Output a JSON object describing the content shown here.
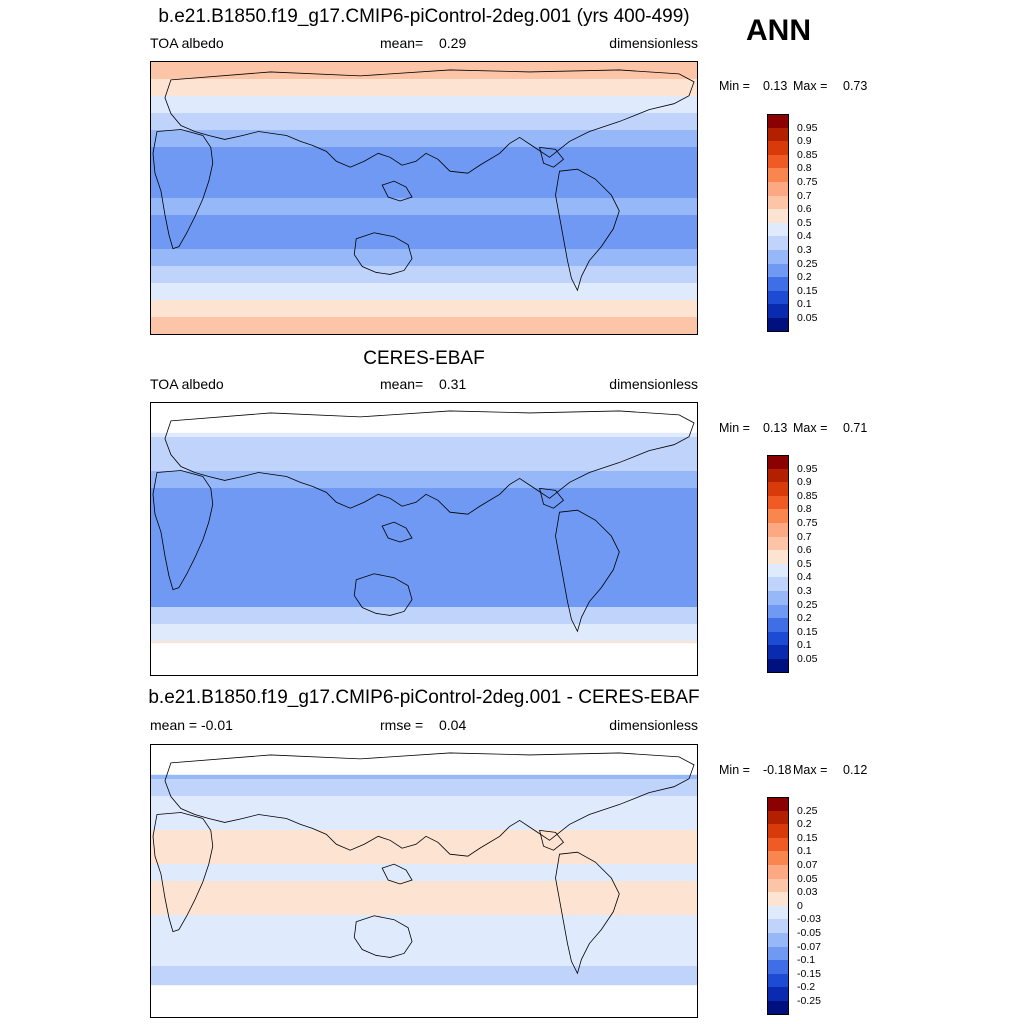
{
  "season": "ANN",
  "panels": [
    {
      "title": "b.e21.B1850.f19_g17.CMIP6-piControl-2deg.001 (yrs 400-499)",
      "left_text": "TOA albedo",
      "mid_label": "mean=",
      "mid_value": "0.29",
      "units": "dimensionless",
      "min_label": "Min =",
      "min_value": "0.13",
      "max_label": "Max =",
      "max_value": "0.73",
      "colorbar": {
        "labels": [
          "0.95",
          "0.9",
          "0.85",
          "0.8",
          "0.75",
          "0.7",
          "0.6",
          "0.5",
          "0.4",
          "0.3",
          "0.25",
          "0.2",
          "0.15",
          "0.1",
          "0.05"
        ],
        "colors": [
          "#8b0000",
          "#b22000",
          "#d93a0a",
          "#f05a24",
          "#f8864e",
          "#fba883",
          "#fcc5a7",
          "#fde3d2",
          "#dfeafd",
          "#bfd3fb",
          "#96b7f8",
          "#6f99f2",
          "#3f6ee6",
          "#1d4bd3",
          "#0a2ab0",
          "#00107e"
        ]
      },
      "field": {
        "bands": [
          0.66,
          0.55,
          0.42,
          0.34,
          0.28,
          0.24,
          0.21,
          0.22,
          0.25,
          0.23,
          0.2,
          0.25,
          0.33,
          0.43,
          0.55,
          0.66
        ],
        "missing_north": false,
        "missing_south": false
      }
    },
    {
      "title": "CERES-EBAF",
      "left_text": "TOA albedo",
      "mid_label": "mean=",
      "mid_value": "0.31",
      "units": "dimensionless",
      "min_label": "Min =",
      "min_value": "0.13",
      "max_label": "Max =",
      "max_value": "0.71",
      "colorbar": {
        "labels": [
          "0.95",
          "0.9",
          "0.85",
          "0.8",
          "0.75",
          "0.7",
          "0.6",
          "0.5",
          "0.4",
          "0.3",
          "0.25",
          "0.2",
          "0.15",
          "0.1",
          "0.05"
        ],
        "colors": [
          "#8b0000",
          "#b22000",
          "#d93a0a",
          "#f05a24",
          "#f8864e",
          "#fba883",
          "#fcc5a7",
          "#fde3d2",
          "#dfeafd",
          "#bfd3fb",
          "#96b7f8",
          "#6f99f2",
          "#3f6ee6",
          "#1d4bd3",
          "#0a2ab0",
          "#00107e"
        ]
      },
      "field": {
        "bands": [
          0.5,
          0.46,
          0.38,
          0.32,
          0.27,
          0.23,
          0.2,
          0.21,
          0.24,
          0.22,
          0.2,
          0.24,
          0.31,
          0.4,
          0.52,
          0.5
        ],
        "missing_north": true,
        "missing_south": true
      }
    },
    {
      "title": "b.e21.B1850.f19_g17.CMIP6-piControl-2deg.001 - CERES-EBAF",
      "left_text": "mean =  -0.01",
      "mid_label": "rmse =",
      "mid_value": "0.04",
      "units": "dimensionless",
      "min_label": "Min =",
      "min_value": "-0.18",
      "max_label": "Max =",
      "max_value": "0.12",
      "colorbar": {
        "labels": [
          "0.25",
          "0.2",
          "0.15",
          "0.1",
          "0.07",
          "0.05",
          "0.03",
          "0",
          "-0.03",
          "-0.05",
          "-0.07",
          "-0.1",
          "-0.15",
          "-0.2",
          "-0.25"
        ],
        "colors": [
          "#8b0000",
          "#b22000",
          "#d93a0a",
          "#f05a24",
          "#f8864e",
          "#fba883",
          "#fcc5a7",
          "#fde3d2",
          "#dfeafd",
          "#bfd3fb",
          "#96b7f8",
          "#6f99f2",
          "#3f6ee6",
          "#1d4bd3",
          "#0a2ab0",
          "#00107e"
        ]
      },
      "field": {
        "bands": [
          0.0,
          -0.06,
          -0.05,
          -0.02,
          -0.01,
          0.0,
          0.01,
          -0.01,
          0.0,
          0.02,
          -0.01,
          -0.02,
          -0.03,
          -0.04,
          -0.05,
          0.0
        ],
        "missing_north": true,
        "missing_south": true
      }
    }
  ]
}
